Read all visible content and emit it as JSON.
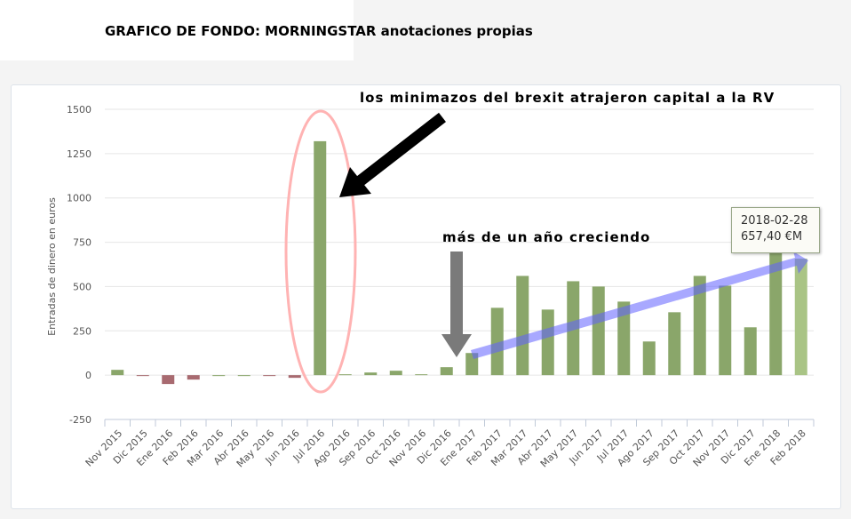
{
  "header": {
    "title": "GRAFICO DE FONDO: MORNINGSTAR anotaciones propias"
  },
  "annotations": {
    "brexit": "los minimazos del brexit atrajeron capital a la RV",
    "growing": "más de un año creciendo"
  },
  "tooltip": {
    "date": "2018-02-28",
    "value": "657,40 €M"
  },
  "colors": {
    "positive": "#8aa66a",
    "negative": "#a86a70",
    "highlight": "#a9c485",
    "ellipse": "#ffb3b3",
    "trend": "#8080ff"
  },
  "chart_data": {
    "type": "bar",
    "title": "",
    "xlabel": "",
    "ylabel": "Entradas de dinero en euros",
    "ylim": [
      -250,
      1500
    ],
    "yticks": [
      -250,
      0,
      250,
      500,
      750,
      1000,
      1250,
      1500
    ],
    "grid": true,
    "categories": [
      "Nov 2015",
      "Dic 2015",
      "Ene 2016",
      "Feb 2016",
      "Mar 2016",
      "Abr 2016",
      "May 2016",
      "Jun 2016",
      "Jul 2016",
      "Ago 2016",
      "Sep 2016",
      "Oct 2016",
      "Nov 2016",
      "Dic 2016",
      "Ene 2017",
      "Feb 2017",
      "Mar 2017",
      "Abr 2017",
      "May 2017",
      "Jun 2017",
      "Jul 2017",
      "Ago 2017",
      "Sep 2017",
      "Oct 2017",
      "Nov 2017",
      "Dic 2017",
      "Ene 2018",
      "Feb 2018"
    ],
    "values": [
      30,
      -5,
      -50,
      -25,
      0,
      0,
      -5,
      -15,
      1320,
      5,
      15,
      25,
      5,
      45,
      125,
      380,
      560,
      370,
      530,
      500,
      415,
      190,
      355,
      560,
      505,
      270,
      690,
      657.4
    ]
  }
}
